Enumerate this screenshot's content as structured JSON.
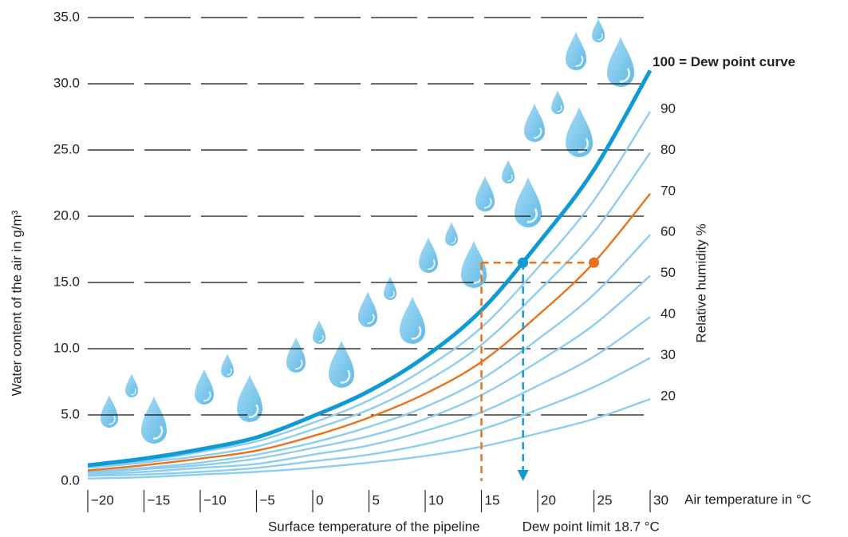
{
  "chart_data": {
    "type": "line",
    "x_label": "Air temperature in °C",
    "y_label": "Water content of the air in g/m³",
    "y2_label": "Relative humidity %",
    "x": [
      -20,
      -15,
      -10,
      -5,
      0,
      5,
      10,
      15,
      20,
      25,
      30
    ],
    "xlim": [
      -20,
      30
    ],
    "xticks": [
      {
        "value": -20,
        "label": "−20"
      },
      {
        "value": -15,
        "label": "−15"
      },
      {
        "value": -10,
        "label": "−10"
      },
      {
        "value": -5,
        "label": "−5"
      },
      0,
      5,
      10,
      15,
      20,
      25,
      30
    ],
    "ylim": [
      0,
      35
    ],
    "yticks": [
      {
        "value": 0,
        "label": "0.0"
      },
      {
        "value": 5,
        "label": "5.0"
      },
      {
        "value": 10,
        "label": "10.0"
      },
      {
        "value": 15,
        "label": "15.0"
      },
      {
        "value": 20,
        "label": "20.0"
      },
      {
        "value": 25,
        "label": "25.0"
      },
      {
        "value": 30,
        "label": "30.0"
      },
      {
        "value": 35,
        "label": "35.0"
      }
    ],
    "grid": true,
    "series": [
      {
        "name": "100 = Dew point curve",
        "color": "#0f9ad6",
        "values": [
          1.2,
          1.7,
          2.4,
          3.3,
          4.9,
          6.8,
          9.4,
          12.9,
          17.9,
          23.5,
          31.0
        ]
      },
      {
        "name": "90",
        "color": "#8dcdee",
        "values": [
          1.1,
          1.5,
          2.2,
          3.0,
          4.4,
          6.1,
          8.5,
          11.6,
          16.1,
          21.2,
          27.9
        ]
      },
      {
        "name": "80",
        "color": "#8dcdee",
        "values": [
          1.0,
          1.4,
          1.9,
          2.6,
          3.9,
          5.4,
          7.5,
          10.3,
          14.3,
          18.8,
          24.8
        ]
      },
      {
        "name": "70",
        "color": "#e8731a",
        "values": [
          0.8,
          1.2,
          1.7,
          2.3,
          3.4,
          4.8,
          6.6,
          9.0,
          12.5,
          16.5,
          21.7
        ]
      },
      {
        "name": "60",
        "color": "#8dcdee",
        "values": [
          0.7,
          1.0,
          1.4,
          2.0,
          2.9,
          4.1,
          5.6,
          7.7,
          10.7,
          14.1,
          18.6
        ]
      },
      {
        "name": "50",
        "color": "#8dcdee",
        "values": [
          0.6,
          0.9,
          1.2,
          1.7,
          2.5,
          3.4,
          4.7,
          6.5,
          9.0,
          11.8,
          15.5
        ]
      },
      {
        "name": "40",
        "color": "#8dcdee",
        "values": [
          0.5,
          0.7,
          1.0,
          1.3,
          2.0,
          2.7,
          3.8,
          5.2,
          7.2,
          9.4,
          12.4
        ]
      },
      {
        "name": "30",
        "color": "#8dcdee",
        "values": [
          0.4,
          0.5,
          0.7,
          1.0,
          1.5,
          2.0,
          2.8,
          3.9,
          5.4,
          7.1,
          9.3
        ]
      },
      {
        "name": "20",
        "color": "#8dcdee",
        "values": [
          0.2,
          0.3,
          0.5,
          0.7,
          1.0,
          1.4,
          1.9,
          2.6,
          3.6,
          4.7,
          6.2
        ]
      }
    ],
    "surface_temperature": 15,
    "surface_label": "Surface temperature of the pipeline",
    "dew_point_label": "Dew point limit 18.7 °C",
    "points": [
      {
        "x": 18.7,
        "y": 16.5,
        "color": "#0f9ad6"
      },
      {
        "x": 25,
        "y": 16.5,
        "color": "#e8731a"
      }
    ]
  }
}
